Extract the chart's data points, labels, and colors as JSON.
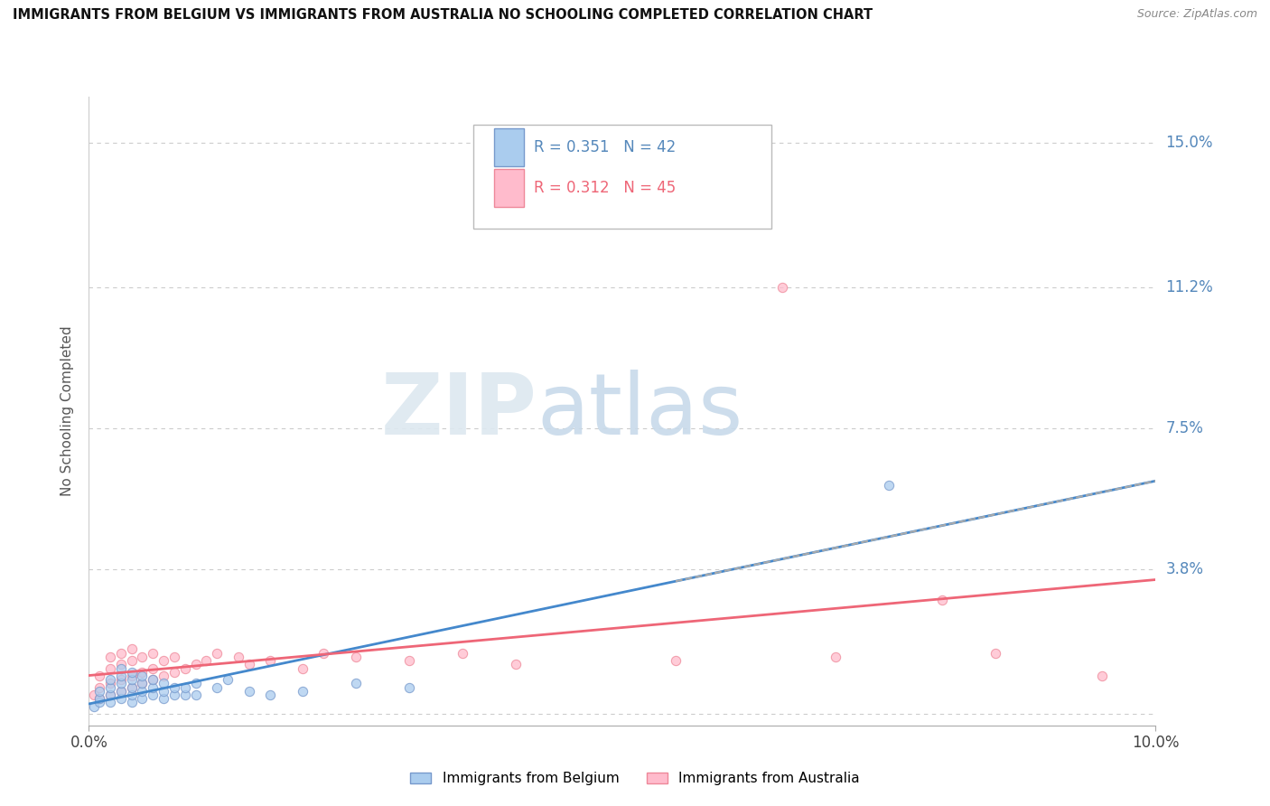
{
  "title": "IMMIGRANTS FROM BELGIUM VS IMMIGRANTS FROM AUSTRALIA NO SCHOOLING COMPLETED CORRELATION CHART",
  "source": "Source: ZipAtlas.com",
  "ylabel": "No Schooling Completed",
  "xlim": [
    0.0,
    0.1
  ],
  "ylim": [
    -0.003,
    0.162
  ],
  "yticks": [
    0.0,
    0.038,
    0.075,
    0.112,
    0.15
  ],
  "ytick_labels": [
    "",
    "3.8%",
    "7.5%",
    "11.2%",
    "15.0%"
  ],
  "xticks": [
    0.0,
    0.1
  ],
  "xtick_labels": [
    "0.0%",
    "10.0%"
  ],
  "belgium_color": "#aaccee",
  "australia_color": "#ffbbcc",
  "belgium_edge_color": "#7799cc",
  "australia_edge_color": "#ee8899",
  "belgium_line_color": "#4488cc",
  "australia_line_color": "#ee6677",
  "legend_R_belgium": "R = 0.351",
  "legend_N_belgium": "N = 42",
  "legend_R_australia": "R = 0.312",
  "legend_N_australia": "N = 45",
  "belgium_x": [
    0.0005,
    0.001,
    0.001,
    0.001,
    0.002,
    0.002,
    0.002,
    0.002,
    0.003,
    0.003,
    0.003,
    0.003,
    0.003,
    0.004,
    0.004,
    0.004,
    0.004,
    0.004,
    0.005,
    0.005,
    0.005,
    0.005,
    0.006,
    0.006,
    0.006,
    0.007,
    0.007,
    0.007,
    0.008,
    0.008,
    0.009,
    0.009,
    0.01,
    0.01,
    0.012,
    0.013,
    0.015,
    0.017,
    0.02,
    0.025,
    0.03,
    0.075
  ],
  "belgium_y": [
    0.002,
    0.003,
    0.004,
    0.006,
    0.003,
    0.005,
    0.007,
    0.009,
    0.004,
    0.006,
    0.008,
    0.01,
    0.012,
    0.003,
    0.005,
    0.007,
    0.009,
    0.011,
    0.004,
    0.006,
    0.008,
    0.01,
    0.005,
    0.007,
    0.009,
    0.004,
    0.006,
    0.008,
    0.005,
    0.007,
    0.005,
    0.007,
    0.005,
    0.008,
    0.007,
    0.009,
    0.006,
    0.005,
    0.006,
    0.008,
    0.007,
    0.06
  ],
  "australia_x": [
    0.0005,
    0.001,
    0.001,
    0.001,
    0.002,
    0.002,
    0.002,
    0.002,
    0.003,
    0.003,
    0.003,
    0.003,
    0.004,
    0.004,
    0.004,
    0.004,
    0.005,
    0.005,
    0.005,
    0.006,
    0.006,
    0.006,
    0.007,
    0.007,
    0.008,
    0.008,
    0.009,
    0.01,
    0.011,
    0.012,
    0.014,
    0.015,
    0.017,
    0.02,
    0.022,
    0.025,
    0.03,
    0.035,
    0.04,
    0.055,
    0.065,
    0.07,
    0.08,
    0.085,
    0.095
  ],
  "australia_y": [
    0.005,
    0.004,
    0.007,
    0.01,
    0.005,
    0.008,
    0.012,
    0.015,
    0.006,
    0.009,
    0.013,
    0.016,
    0.007,
    0.01,
    0.014,
    0.017,
    0.008,
    0.011,
    0.015,
    0.009,
    0.012,
    0.016,
    0.01,
    0.014,
    0.011,
    0.015,
    0.012,
    0.013,
    0.014,
    0.016,
    0.015,
    0.013,
    0.014,
    0.012,
    0.016,
    0.015,
    0.014,
    0.016,
    0.013,
    0.014,
    0.112,
    0.015,
    0.03,
    0.016,
    0.01
  ]
}
